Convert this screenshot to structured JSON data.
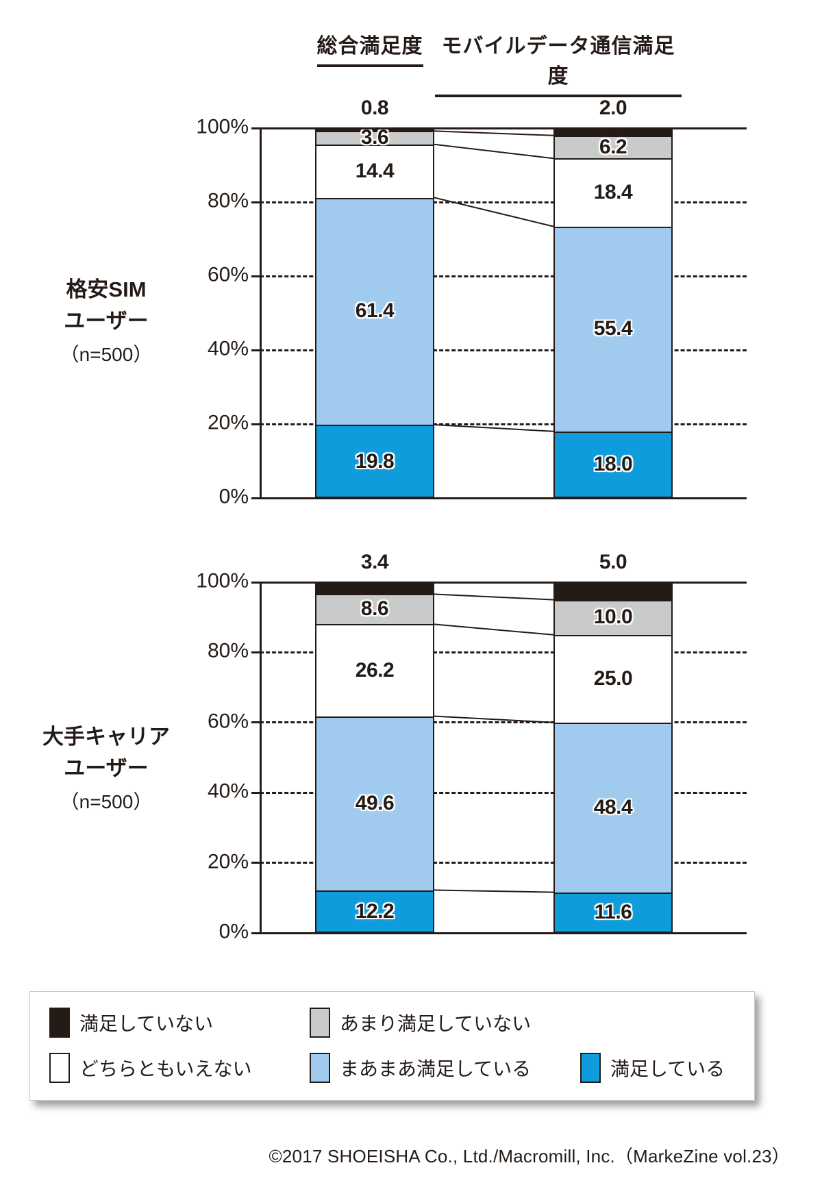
{
  "column_headers": [
    {
      "label": "総合満足度"
    },
    {
      "label": "モバイルデータ通信満足度"
    }
  ],
  "colors": {
    "black": "#241B17",
    "gray": "#C9CACA",
    "white": "#FFFFFF",
    "lightblue": "#A0CBEF",
    "blue": "#0E9CDC",
    "line": "#241B17"
  },
  "legend": {
    "items": [
      {
        "label": "満足していない",
        "color_key": "black"
      },
      {
        "label": "あまり満足していない",
        "color_key": "gray"
      },
      {
        "label": "どちらともいえない",
        "color_key": "white"
      },
      {
        "label": "まあまあ満足している",
        "color_key": "lightblue"
      },
      {
        "label": "満足している",
        "color_key": "blue"
      }
    ]
  },
  "footer": {
    "credit": "©2017 SHOEISHA Co., Ltd./Macromill, Inc.（MarkeZine vol.23）"
  },
  "chart_data": [
    {
      "type": "bar",
      "stacked": true,
      "group_label_lines": [
        "格安SIM",
        "ユーザー"
      ],
      "group_sample": "（n=500）",
      "categories": [
        "総合満足度",
        "モバイルデータ通信満足度"
      ],
      "ylim": [
        0,
        100
      ],
      "yticks": [
        0,
        20,
        40,
        60,
        80,
        100
      ],
      "ytick_labels": [
        "0%",
        "20%",
        "40%",
        "60%",
        "80%",
        "100%"
      ],
      "grid": "dashed-horizontal",
      "series_top_to_bottom": [
        {
          "name": "満足していない",
          "color_key": "black",
          "label_position": "above",
          "values": [
            0.8,
            2.0
          ],
          "labels": [
            "0.8",
            "2.0"
          ]
        },
        {
          "name": "あまり満足していない",
          "color_key": "gray",
          "values": [
            3.6,
            6.2
          ],
          "labels": [
            "3.6",
            "6.2"
          ]
        },
        {
          "name": "どちらともいえない",
          "color_key": "white",
          "values": [
            14.4,
            18.4
          ],
          "labels": [
            "14.4",
            "18.4"
          ]
        },
        {
          "name": "まあまあ満足している",
          "color_key": "lightblue",
          "values": [
            61.4,
            55.4
          ],
          "labels": [
            "61.4",
            "55.4"
          ]
        },
        {
          "name": "満足している",
          "color_key": "blue",
          "values": [
            19.8,
            18.0
          ],
          "labels": [
            "19.8",
            "18.0"
          ]
        }
      ]
    },
    {
      "type": "bar",
      "stacked": true,
      "group_label_lines": [
        "大手キャリア",
        "ユーザー"
      ],
      "group_sample": "（n=500）",
      "categories": [
        "総合満足度",
        "モバイルデータ通信満足度"
      ],
      "ylim": [
        0,
        100
      ],
      "yticks": [
        0,
        20,
        40,
        60,
        80,
        100
      ],
      "ytick_labels": [
        "0%",
        "20%",
        "40%",
        "60%",
        "80%",
        "100%"
      ],
      "grid": "dashed-horizontal",
      "series_top_to_bottom": [
        {
          "name": "満足していない",
          "color_key": "black",
          "label_position": "above",
          "values": [
            3.4,
            5.0
          ],
          "labels": [
            "3.4",
            "5.0"
          ]
        },
        {
          "name": "あまり満足していない",
          "color_key": "gray",
          "values": [
            8.6,
            10.0
          ],
          "labels": [
            "8.6",
            "10.0"
          ]
        },
        {
          "name": "どちらともいえない",
          "color_key": "white",
          "values": [
            26.2,
            25.0
          ],
          "labels": [
            "26.2",
            "25.0"
          ]
        },
        {
          "name": "まあまあ満足している",
          "color_key": "lightblue",
          "values": [
            49.6,
            48.4
          ],
          "labels": [
            "49.6",
            "48.4"
          ]
        },
        {
          "name": "満足している",
          "color_key": "blue",
          "values": [
            12.2,
            11.6
          ],
          "labels": [
            "12.2",
            "11.6"
          ]
        }
      ]
    }
  ]
}
